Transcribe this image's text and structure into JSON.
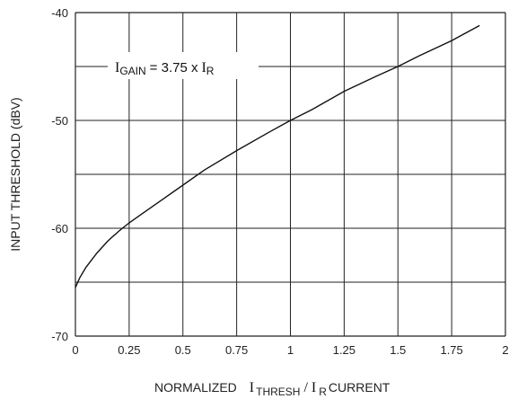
{
  "chart_data": {
    "type": "line",
    "title": "",
    "ylabel": "INPUT THRESHOLD (dBV)",
    "xlabel": {
      "prefix": "NORMALIZED",
      "i1": "I",
      "i1_sub": "THRESH",
      "slash": "/",
      "i2": "I",
      "i2_sub": "R",
      "suffix": "CURRENT"
    },
    "annotation": {
      "i": "I",
      "sub": "GAIN",
      "eq": "= 3.75 x",
      "i2": "I",
      "sub2": "R"
    },
    "xlim": [
      0,
      2
    ],
    "ylim": [
      -70,
      -40
    ],
    "x_ticks": [
      "0",
      "0.25",
      "0.5",
      "0.75",
      "1",
      "1.25",
      "1.5",
      "1.75",
      "2"
    ],
    "y_ticks": [
      "-40",
      "-50",
      "-60",
      "-70"
    ],
    "grid": true,
    "series": [
      {
        "x": [
          0,
          0.02,
          0.05,
          0.1,
          0.15,
          0.2,
          0.25,
          0.3,
          0.4,
          0.5,
          0.6,
          0.75,
          0.9,
          1.0,
          1.1,
          1.25,
          1.4,
          1.5,
          1.6,
          1.75,
          1.88
        ],
        "y": [
          -65.5,
          -64.6,
          -63.6,
          -62.3,
          -61.2,
          -60.3,
          -59.5,
          -58.8,
          -57.4,
          -56.0,
          -54.6,
          -52.8,
          -51.1,
          -50.0,
          -49.0,
          -47.3,
          -45.9,
          -45.0,
          -44.0,
          -42.6,
          -41.2
        ]
      }
    ],
    "colors": {
      "line": "#111111",
      "grid": "#222222",
      "background": "#ffffff"
    }
  }
}
